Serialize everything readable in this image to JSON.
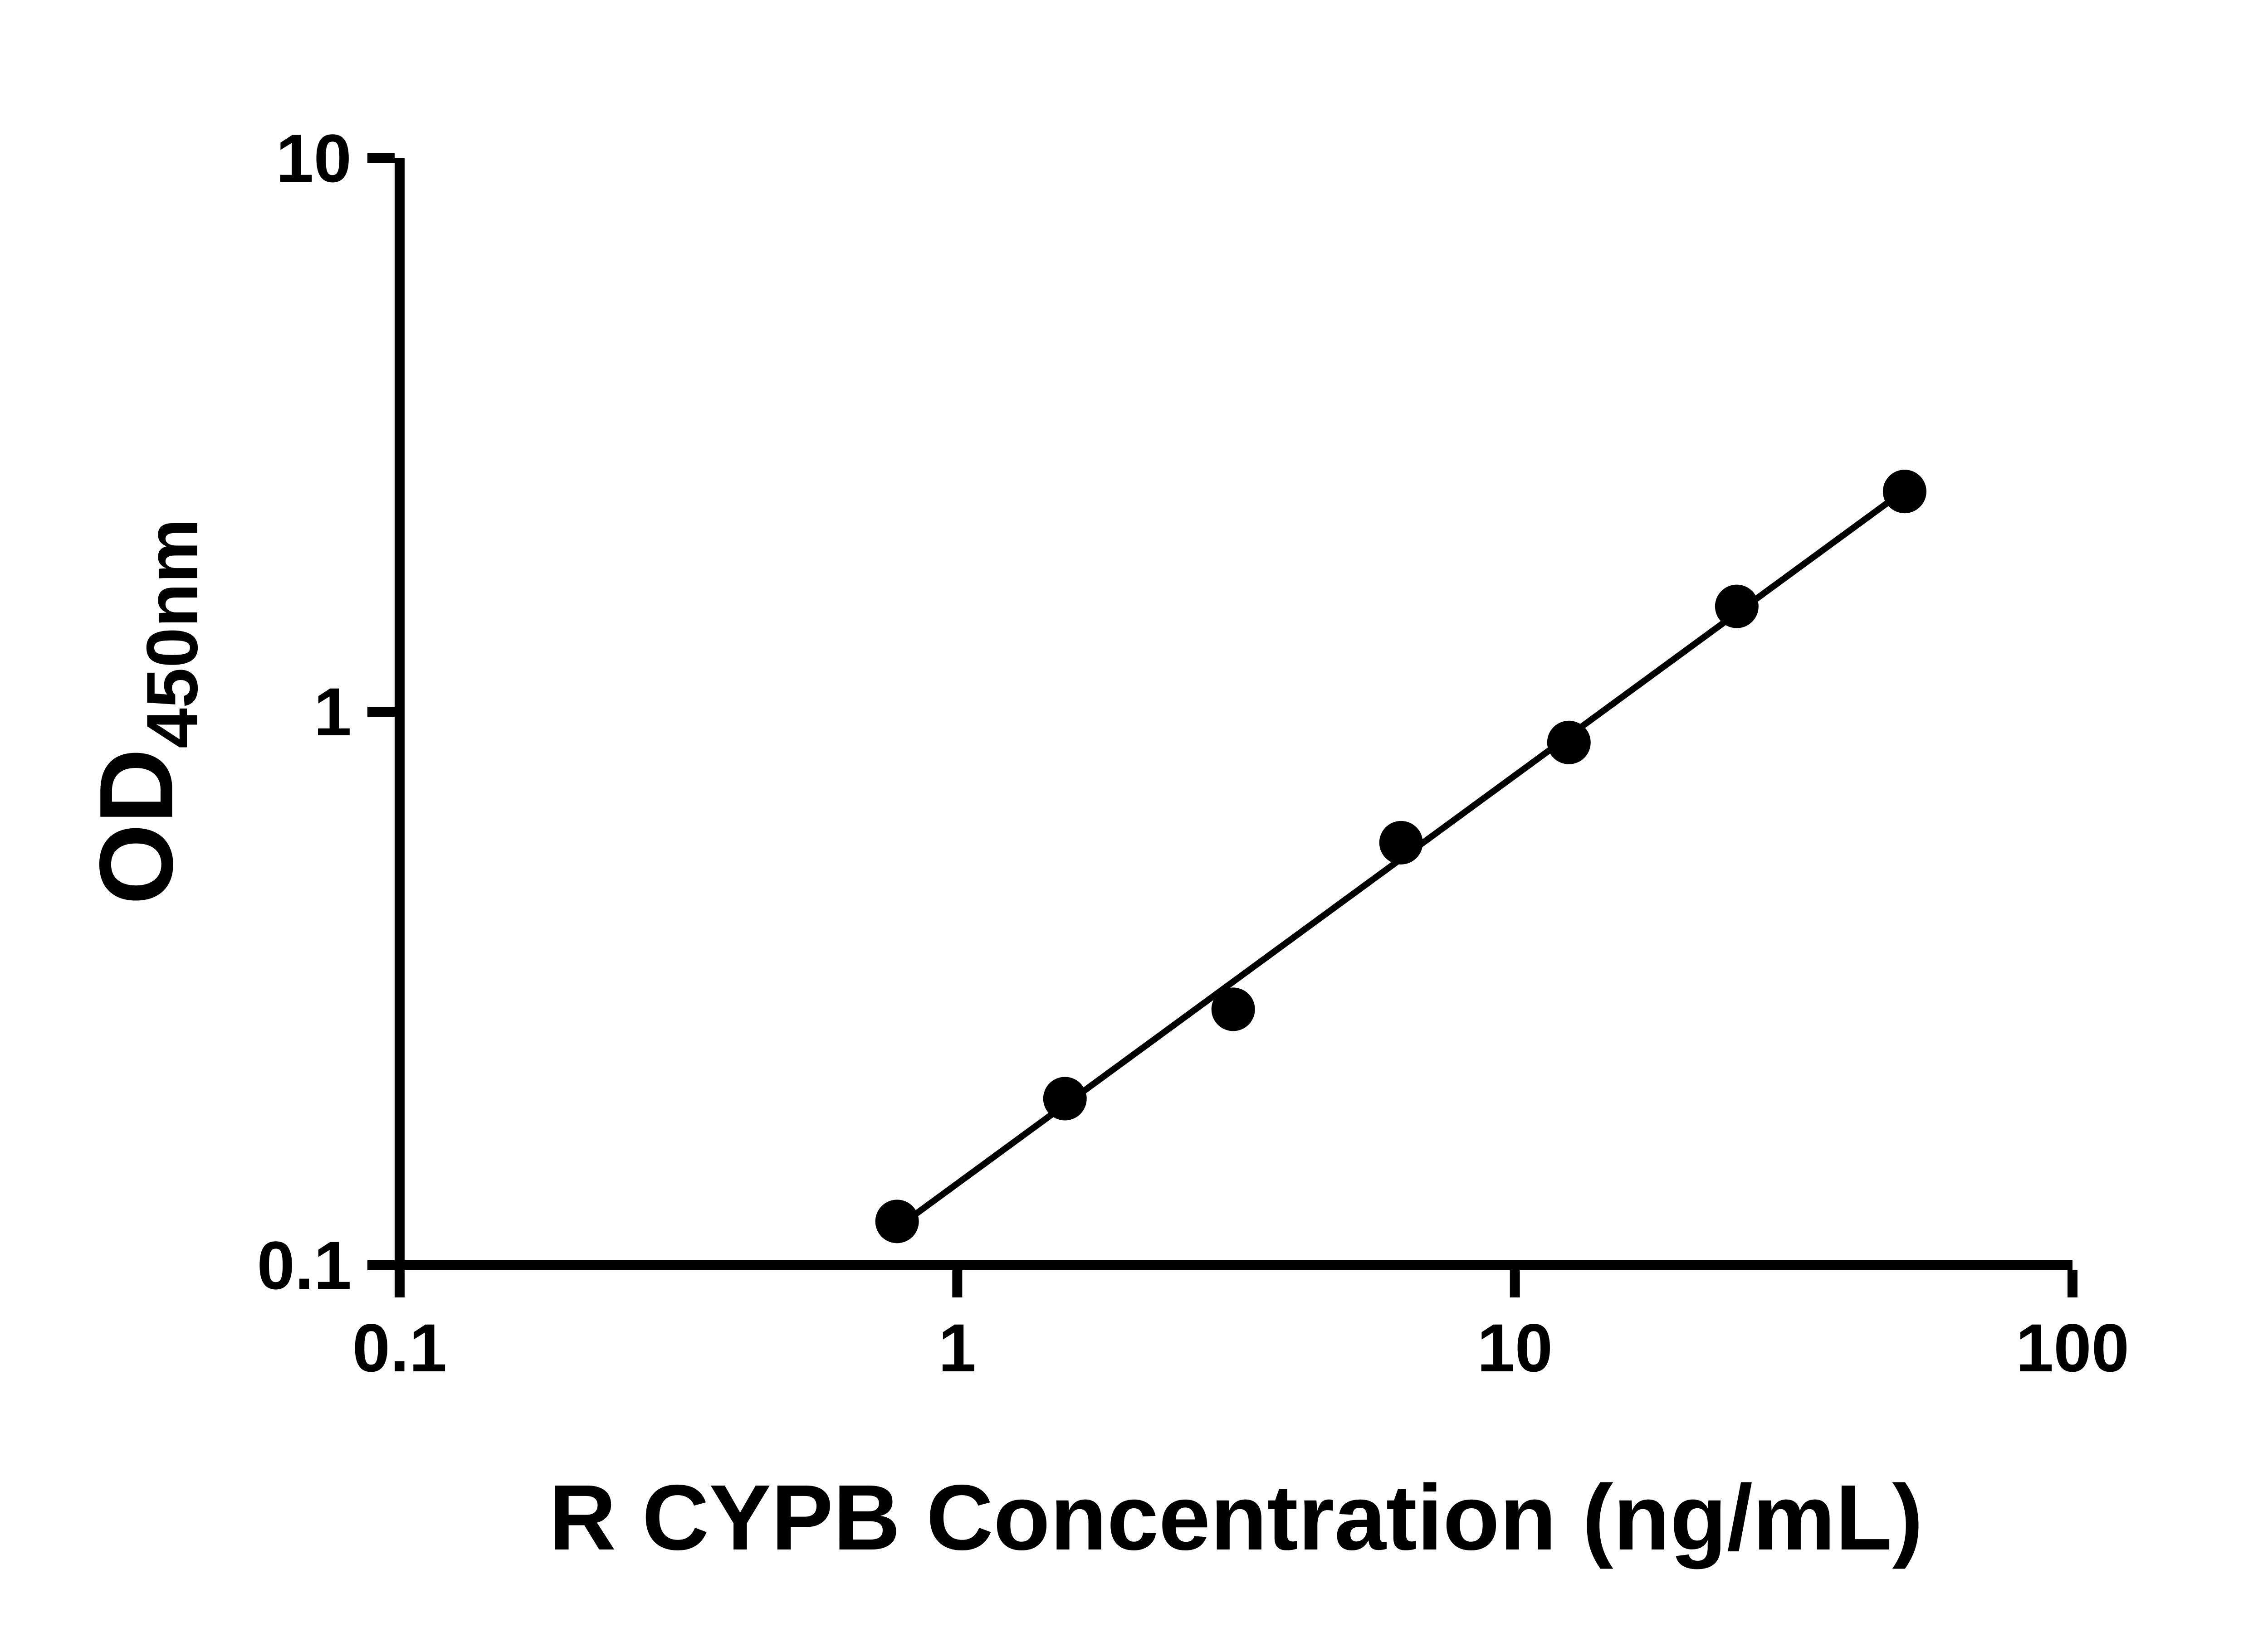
{
  "chart": {
    "xlabel": "R CYPB Concentration (ng/mL)",
    "ylabel_main": "OD",
    "ylabel_sub": "450nm",
    "x_ticks": [
      "0.1",
      "1",
      "10",
      "100"
    ],
    "y_ticks": [
      "0.1",
      "1",
      "10"
    ]
  },
  "chart_data": {
    "type": "scatter",
    "x": [
      0.78,
      1.56,
      3.125,
      6.25,
      12.5,
      25,
      50
    ],
    "y": [
      0.12,
      0.2,
      0.29,
      0.58,
      0.88,
      1.55,
      2.5
    ],
    "title": "",
    "xlabel": "R CYPB Concentration (ng/mL)",
    "ylabel": "OD450nm",
    "xscale": "log",
    "yscale": "log",
    "xlim": [
      0.1,
      100
    ],
    "ylim": [
      0.1,
      10
    ],
    "grid": false,
    "legend": false,
    "fit_line": true,
    "marker_color": "#000000",
    "line_color": "#000000",
    "axis_color": "#000000"
  }
}
